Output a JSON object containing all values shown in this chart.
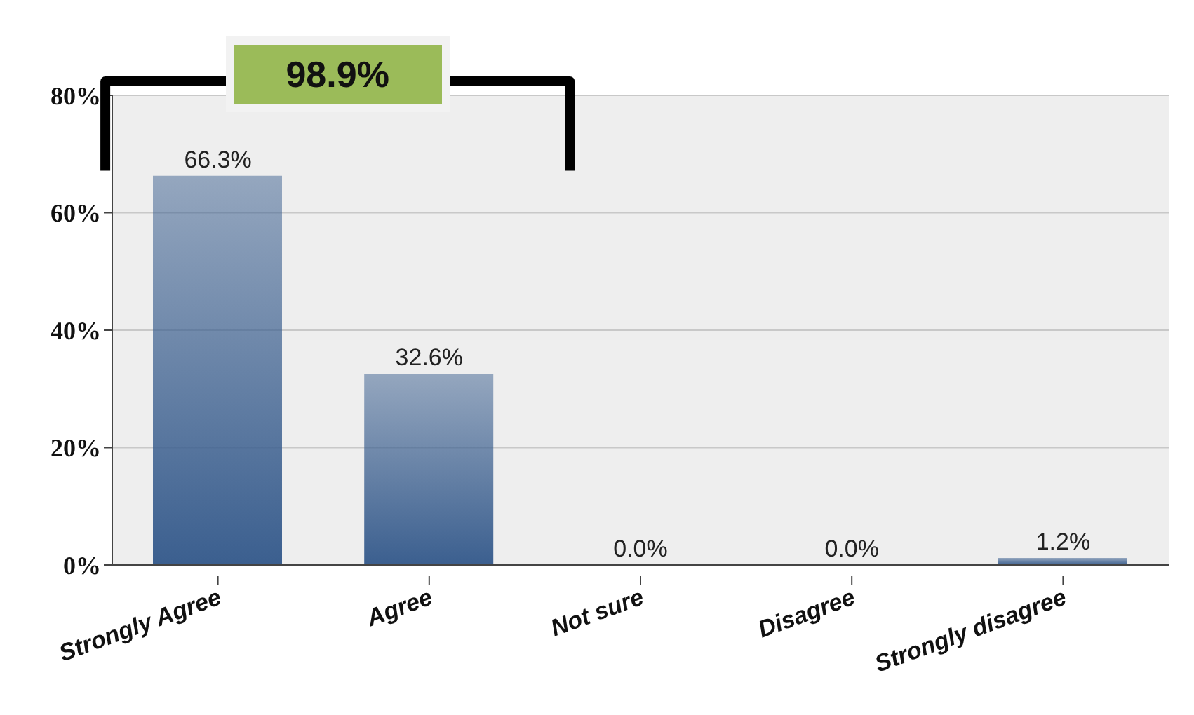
{
  "chart_data": {
    "type": "bar",
    "categories": [
      "Strongly Agree",
      "Agree",
      "Not sure",
      "Disagree",
      "Strongly disagree"
    ],
    "values": [
      66.3,
      32.6,
      0.0,
      0.0,
      1.2
    ],
    "value_labels": [
      "66.3%",
      "32.6%",
      "0.0%",
      "0.0%",
      "1.2%"
    ],
    "color": "#3b5f8f",
    "ylim": [
      0,
      80
    ],
    "yticks": [
      {
        "value": 0,
        "label": "0%"
      },
      {
        "value": 20,
        "label": "20%"
      },
      {
        "value": 40,
        "label": "40%"
      },
      {
        "value": 60,
        "label": "60%"
      },
      {
        "value": 80,
        "label": "80%"
      }
    ],
    "grid": "y",
    "annotations": [
      "98.9%"
    ]
  }
}
